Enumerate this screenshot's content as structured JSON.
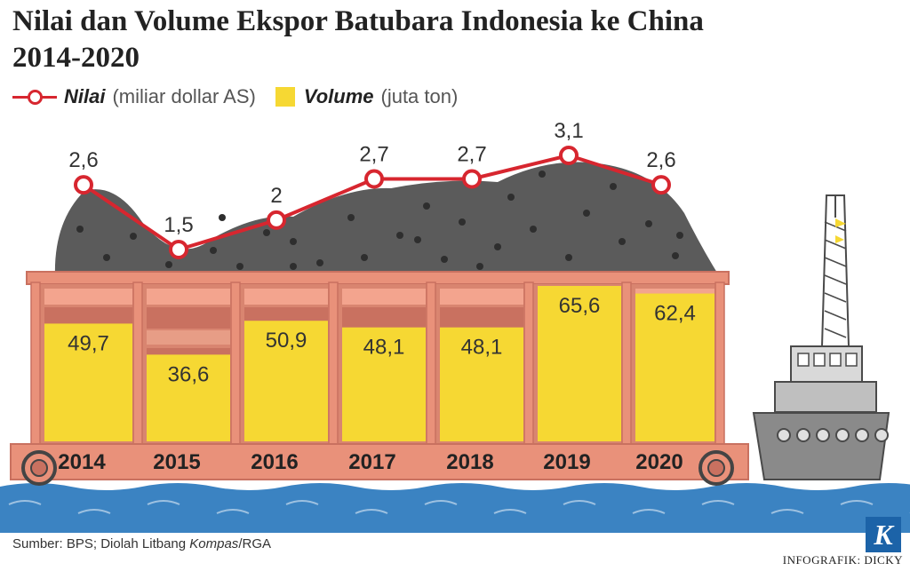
{
  "title_line1": "Nilai dan Volume Ekspor Batubara Indonesia ke China",
  "title_line2": "2014-2020",
  "legend": {
    "value_name": "Nilai",
    "value_unit": "(miliar dollar AS)",
    "volume_name": "Volume",
    "volume_unit": "(juta ton)"
  },
  "chart_data": {
    "type": "bar",
    "title": "Nilai dan Volume Ekspor Batubara Indonesia ke China 2014-2020",
    "categories": [
      "2014",
      "2015",
      "2016",
      "2017",
      "2018",
      "2019",
      "2020"
    ],
    "series": [
      {
        "name": "Volume (juta ton)",
        "type": "bar",
        "values": [
          49.7,
          36.6,
          50.9,
          48.1,
          48.1,
          65.6,
          62.4
        ],
        "labels": [
          "49,7",
          "36,6",
          "50,9",
          "48,1",
          "48,1",
          "65,6",
          "62,4"
        ],
        "color": "#f6d833"
      },
      {
        "name": "Nilai (miliar dollar AS)",
        "type": "line",
        "values": [
          2.6,
          1.5,
          2.0,
          2.7,
          2.7,
          3.1,
          2.6
        ],
        "labels": [
          "2,6",
          "1,5",
          "2",
          "2,7",
          "2,7",
          "3,1",
          "2,6"
        ],
        "color": "#d7262f"
      }
    ],
    "bar_ylim": [
      0,
      65.6
    ],
    "line_ylim": [
      1.5,
      3.1
    ]
  },
  "colors": {
    "line": "#d7262f",
    "bar": "#f6d833",
    "container": "#e9917a",
    "container_dark": "#c97160",
    "container_stripe": "#d98570",
    "coal": "#5b5b5b",
    "coal_dots": "#2e2e2e",
    "water": "#3b83c2",
    "ship": "#8a8a8a",
    "ship_dark": "#4a4a4a"
  },
  "footer": {
    "source_prefix": "Sumber: BPS; Diolah Litbang ",
    "source_italic": "Kompas",
    "source_suffix": "/RGA",
    "credit": "INFOGRAFIK: DICKY",
    "logo": "K"
  }
}
